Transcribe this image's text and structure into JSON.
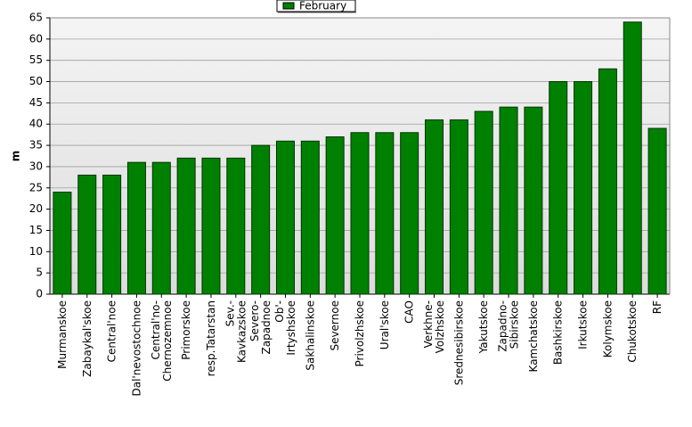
{
  "chart_data": {
    "type": "bar",
    "y_label": "m",
    "categories": [
      "Murmanskoe",
      "Zabaykal'skoe",
      "Central'noe",
      "Dal'nevostochnoe",
      "Central'no-\nChernozemnoe",
      "Primorskoe",
      "resp.Tatarstan",
      "Sev.-\nKavkazskoe",
      "Severo-\nZapadnoe",
      "Ob'-\nIrtyshskoe",
      "Sakhalinskoe",
      "Severnoe",
      "Privolzhskoe",
      "Ural'skoe",
      "CAO",
      "Verkhne-\nVolzhskoe",
      "Srednesibirskoe",
      "Yakutskoe",
      "Zapadno-\nSibirskoe",
      "Kamchatskoe",
      "Bashkirskoe",
      "Irkutskoe",
      "Kolymskoe",
      "Chukotskoe",
      "RF"
    ],
    "series": [
      {
        "name": "February",
        "color": "#008000",
        "values": [
          24,
          28,
          28,
          31,
          31,
          32,
          32,
          32,
          35,
          36,
          36,
          37,
          38,
          38,
          38,
          41,
          41,
          43,
          44,
          44,
          50,
          50,
          53,
          64,
          39
        ]
      }
    ],
    "ylim": [
      0,
      65
    ],
    "yticks": [
      0,
      5,
      10,
      15,
      20,
      25,
      30,
      35,
      40,
      45,
      50,
      55,
      60,
      65
    ],
    "grid": true,
    "legend": "top"
  }
}
